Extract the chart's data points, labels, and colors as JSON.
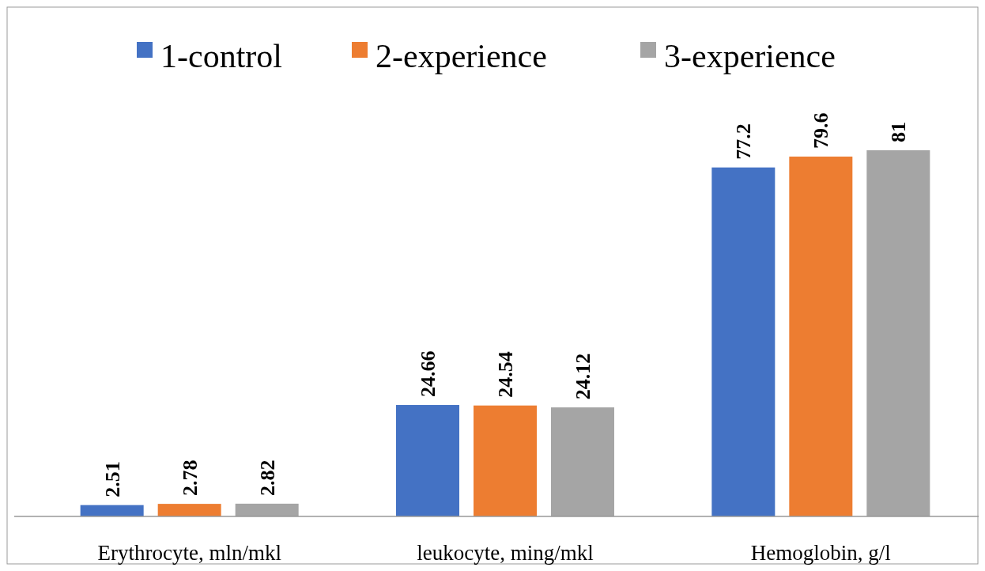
{
  "chart_data": {
    "type": "bar",
    "categories": [
      "Erythrocyte, mln/mkl",
      "leukocyte, ming/mkl",
      "Hemoglobin, g/l"
    ],
    "series": [
      {
        "name": "1-control",
        "color": "#4472c4",
        "values": [
          2.51,
          24.66,
          77.2
        ]
      },
      {
        "name": "2-experience",
        "color": "#ed7d31",
        "values": [
          2.78,
          24.54,
          79.6
        ]
      },
      {
        "name": "3-experience",
        "color": "#a5a5a5",
        "values": [
          2.82,
          24.12,
          81
        ]
      }
    ],
    "relative": false,
    "data_labels": true,
    "legend": "top"
  }
}
